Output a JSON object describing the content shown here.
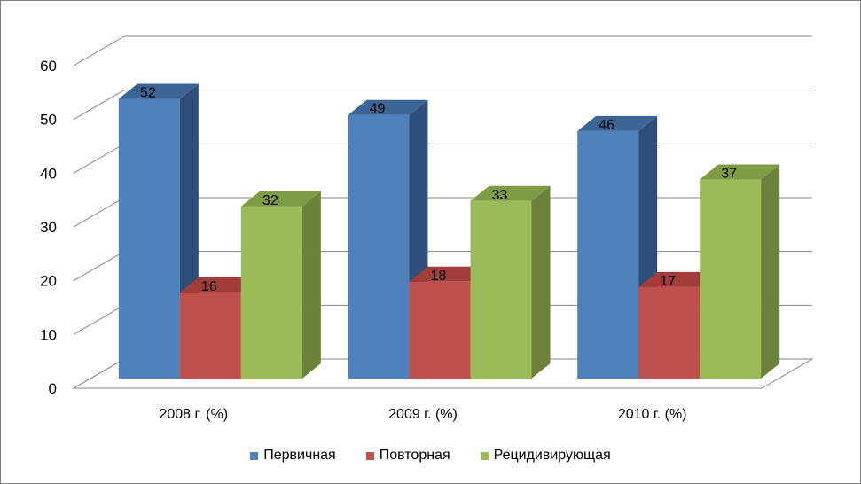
{
  "colors": {
    "gridline": "#868686",
    "axis": "#868686",
    "series": [
      {
        "front": "#4f81bd",
        "side": "#2f4f7a",
        "top": "#3c6596"
      },
      {
        "front": "#c0504d",
        "side": "#8e3533",
        "top": "#a03c39"
      },
      {
        "front": "#9bbb59",
        "side": "#6b823a",
        "top": "#7f9c45"
      }
    ]
  },
  "chart_data": {
    "type": "bar",
    "style": "3d-clustered-column",
    "categories": [
      "2008 г. (%)",
      "2009 г. (%)",
      "2010 г. (%)"
    ],
    "series": [
      {
        "name": "Первичная",
        "values": [
          52,
          49,
          46
        ]
      },
      {
        "name": "Повторная",
        "values": [
          16,
          18,
          17
        ]
      },
      {
        "name": "Рецидивирующая",
        "values": [
          32,
          33,
          37
        ]
      }
    ],
    "ylim": [
      0,
      60
    ],
    "yticks": [
      "0",
      "10",
      "20",
      "30",
      "40",
      "50",
      "60"
    ],
    "grid": true,
    "data_labels": true,
    "legend_position": "bottom"
  }
}
